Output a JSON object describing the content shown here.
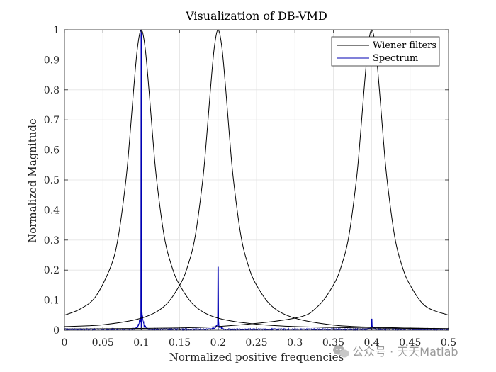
{
  "chart_data": {
    "type": "line",
    "title": "Visualization of DB-VMD",
    "xlabel": "Normalized positive frequencies",
    "ylabel": "Normalized Magnitude",
    "xlim": [
      0,
      0.5
    ],
    "ylim": [
      0,
      1
    ],
    "xticks": [
      0,
      0.05,
      0.1,
      0.15,
      0.2,
      0.25,
      0.3,
      0.35,
      0.4,
      0.45,
      0.5
    ],
    "xtick_labels": [
      "0",
      "0.05",
      "0.1",
      "0.15",
      "0.2",
      "0.25",
      "0.3",
      "0.35",
      "0.4",
      "0.45",
      "0.5"
    ],
    "yticks": [
      0,
      0.1,
      0.2,
      0.3,
      0.4,
      0.5,
      0.6,
      0.7,
      0.8,
      0.9,
      1
    ],
    "ytick_labels": [
      "0",
      "0.1",
      "0.2",
      "0.3",
      "0.4",
      "0.5",
      "0.6",
      "0.7",
      "0.8",
      "0.9",
      "1"
    ],
    "grid": true,
    "legend_position": "top-right",
    "series": [
      {
        "name": "Wiener filters",
        "color": "#000000",
        "kind": "filters",
        "x": [
          0,
          0.02,
          0.04,
          0.06,
          0.07,
          0.08,
          0.085,
          0.09,
          0.095,
          0.1,
          0.105,
          0.11,
          0.115,
          0.12,
          0.13,
          0.14,
          0.15,
          0.17,
          0.2,
          0.25,
          0.3,
          0.35,
          0.4,
          0.45,
          0.5
        ],
        "filters": [
          {
            "center": 0.1,
            "x": [
              0,
              0.02,
              0.04,
              0.06,
              0.07,
              0.08,
              0.085,
              0.09,
              0.095,
              0.1,
              0.105,
              0.11,
              0.115,
              0.12,
              0.13,
              0.14,
              0.15,
              0.17,
              0.2,
              0.25,
              0.3,
              0.35,
              0.4,
              0.45,
              0.5
            ],
            "y": [
              0.05,
              0.07,
              0.11,
              0.21,
              0.31,
              0.5,
              0.64,
              0.8,
              0.94,
              1.0,
              0.94,
              0.8,
              0.64,
              0.5,
              0.31,
              0.21,
              0.15,
              0.08,
              0.04,
              0.02,
              0.012,
              0.009,
              0.007,
              0.006,
              0.005
            ]
          },
          {
            "center": 0.2,
            "x": [
              0,
              0.05,
              0.1,
              0.13,
              0.15,
              0.16,
              0.17,
              0.18,
              0.185,
              0.19,
              0.195,
              0.2,
              0.205,
              0.21,
              0.215,
              0.22,
              0.23,
              0.24,
              0.25,
              0.27,
              0.3,
              0.35,
              0.4,
              0.45,
              0.5
            ],
            "y": [
              0.012,
              0.018,
              0.04,
              0.08,
              0.15,
              0.21,
              0.31,
              0.5,
              0.64,
              0.8,
              0.94,
              1.0,
              0.94,
              0.8,
              0.64,
              0.5,
              0.31,
              0.21,
              0.15,
              0.08,
              0.04,
              0.017,
              0.01,
              0.007,
              0.005
            ]
          },
          {
            "center": 0.4,
            "x": [
              0,
              0.1,
              0.2,
              0.3,
              0.33,
              0.35,
              0.36,
              0.37,
              0.38,
              0.385,
              0.39,
              0.395,
              0.4,
              0.405,
              0.41,
              0.415,
              0.42,
              0.43,
              0.44,
              0.45,
              0.47,
              0.5
            ],
            "y": [
              0.004,
              0.006,
              0.012,
              0.04,
              0.08,
              0.15,
              0.21,
              0.31,
              0.5,
              0.64,
              0.8,
              0.94,
              1.0,
              0.94,
              0.8,
              0.64,
              0.5,
              0.31,
              0.21,
              0.15,
              0.08,
              0.05
            ]
          }
        ]
      },
      {
        "name": "Spectrum",
        "color": "#0000b3",
        "kind": "spectrum",
        "noise_floor": 0.003,
        "peaks": [
          {
            "x": 0.1,
            "y": 1.0
          },
          {
            "x": 0.2,
            "y": 0.21
          },
          {
            "x": 0.4,
            "y": 0.037
          }
        ],
        "skirts": [
          {
            "x": 0.1,
            "y": 0.07
          },
          {
            "x": 0.2,
            "y": 0.03
          },
          {
            "x": 0.4,
            "y": 0.012
          }
        ]
      }
    ]
  },
  "watermark": {
    "text": "公众号 · 天天Matlab",
    "icon": "wechat-icon"
  }
}
